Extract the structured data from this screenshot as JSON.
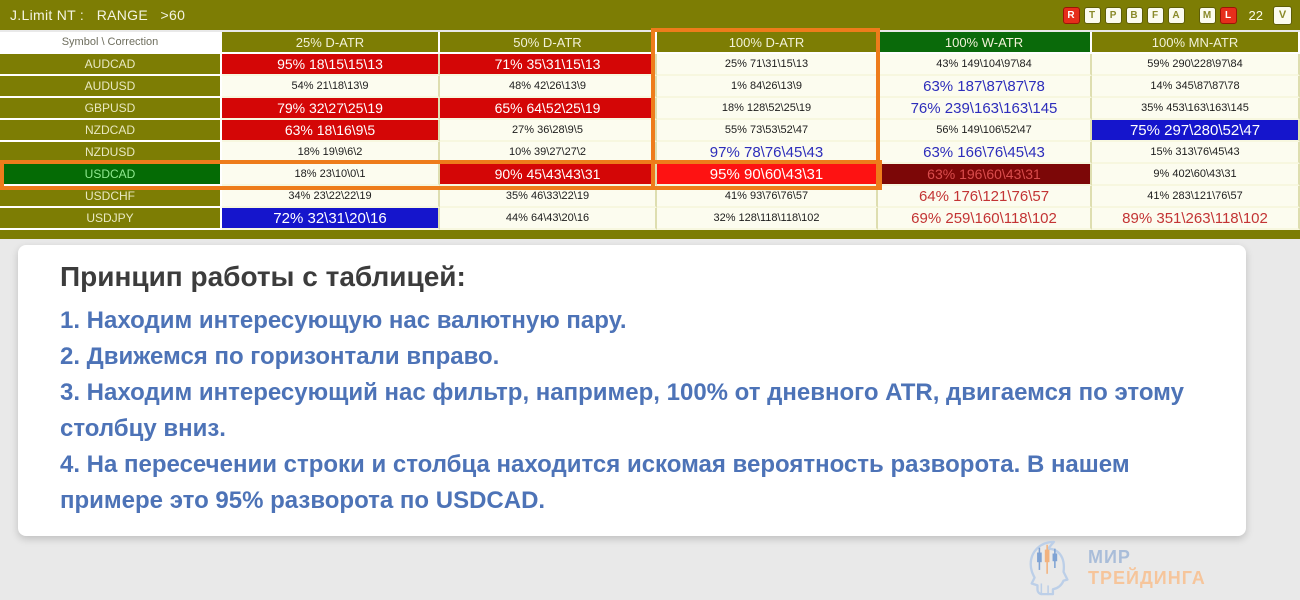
{
  "topbar": {
    "title": "J.Limit NT :   RANGE   >60",
    "buttons": [
      {
        "label": "R",
        "variant": "red"
      },
      {
        "label": "T",
        "variant": "light"
      },
      {
        "label": "P",
        "variant": "light"
      },
      {
        "label": "B",
        "variant": "light"
      },
      {
        "label": "F",
        "variant": "light"
      },
      {
        "label": "A",
        "variant": "light"
      },
      {
        "label": "M",
        "variant": "light",
        "gap": true
      },
      {
        "label": "L",
        "variant": "red"
      }
    ],
    "count": "22",
    "v_button": "V"
  },
  "table": {
    "corner_label": "Symbol \\ Correction",
    "columns": [
      {
        "label": "25% D-ATR",
        "variant": "olive"
      },
      {
        "label": "50% D-ATR",
        "variant": "olive"
      },
      {
        "label": "100% D-ATR",
        "variant": "olive"
      },
      {
        "label": "100% W-ATR",
        "variant": "green"
      },
      {
        "label": "100% MN-ATR",
        "variant": "olive"
      }
    ],
    "rows": [
      {
        "symbol": "AUDCAD",
        "highlight": false,
        "cells": [
          {
            "text": "95% 18\\15\\15\\13",
            "style": "red"
          },
          {
            "text": "71% 35\\31\\15\\13",
            "style": "red"
          },
          {
            "text": "25% 71\\31\\15\\13",
            "style": "plain"
          },
          {
            "text": "43% 149\\104\\97\\84",
            "style": "plain"
          },
          {
            "text": "59% 290\\228\\97\\84",
            "style": "plain"
          }
        ]
      },
      {
        "symbol": "AUDUSD",
        "highlight": false,
        "cells": [
          {
            "text": "54% 21\\18\\13\\9",
            "style": "plain"
          },
          {
            "text": "48% 42\\26\\13\\9",
            "style": "plain"
          },
          {
            "text": "1% 84\\26\\13\\9",
            "style": "plain"
          },
          {
            "text": "63% 187\\87\\87\\78",
            "style": "blue-text"
          },
          {
            "text": "14% 345\\87\\87\\78",
            "style": "plain"
          }
        ]
      },
      {
        "symbol": "GBPUSD",
        "highlight": false,
        "cells": [
          {
            "text": "79% 32\\27\\25\\19",
            "style": "red"
          },
          {
            "text": "65% 64\\52\\25\\19",
            "style": "red"
          },
          {
            "text": "18% 128\\52\\25\\19",
            "style": "plain"
          },
          {
            "text": "76% 239\\163\\163\\145",
            "style": "blue-text"
          },
          {
            "text": "35% 453\\163\\163\\145",
            "style": "plain"
          }
        ]
      },
      {
        "symbol": "NZDCAD",
        "highlight": false,
        "cells": [
          {
            "text": "63% 18\\16\\9\\5",
            "style": "red"
          },
          {
            "text": "27% 36\\28\\9\\5",
            "style": "plain"
          },
          {
            "text": "55% 73\\53\\52\\47",
            "style": "plain"
          },
          {
            "text": "56% 149\\106\\52\\47",
            "style": "plain"
          },
          {
            "text": "75% 297\\280\\52\\47",
            "style": "blue"
          }
        ]
      },
      {
        "symbol": "NZDUSD",
        "highlight": false,
        "cells": [
          {
            "text": "18% 19\\9\\6\\2",
            "style": "plain"
          },
          {
            "text": "10% 39\\27\\27\\2",
            "style": "plain"
          },
          {
            "text": "97% 78\\76\\45\\43",
            "style": "blue-text"
          },
          {
            "text": "63% 166\\76\\45\\43",
            "style": "blue-text"
          },
          {
            "text": "15% 313\\76\\45\\43",
            "style": "plain"
          }
        ]
      },
      {
        "symbol": "USDCAD",
        "highlight": true,
        "cells": [
          {
            "text": "18% 23\\10\\0\\1",
            "style": "plain"
          },
          {
            "text": "90% 45\\43\\43\\31",
            "style": "red"
          },
          {
            "text": "95% 90\\60\\43\\31",
            "style": "bright-red"
          },
          {
            "text": "63% 196\\60\\43\\31",
            "style": "maroon"
          },
          {
            "text": "9% 402\\60\\43\\31",
            "style": "plain"
          }
        ]
      },
      {
        "symbol": "USDCHF",
        "highlight": false,
        "cells": [
          {
            "text": "34% 23\\22\\22\\19",
            "style": "plain"
          },
          {
            "text": "35% 46\\33\\22\\19",
            "style": "plain"
          },
          {
            "text": "41% 93\\76\\76\\57",
            "style": "plain"
          },
          {
            "text": "64% 176\\121\\76\\57",
            "style": "red-text"
          },
          {
            "text": "41% 283\\121\\76\\57",
            "style": "plain"
          }
        ]
      },
      {
        "symbol": "USDJPY",
        "highlight": false,
        "cells": [
          {
            "text": "72% 32\\31\\20\\16",
            "style": "blue"
          },
          {
            "text": "44% 64\\43\\20\\16",
            "style": "plain"
          },
          {
            "text": "32% 128\\118\\118\\102",
            "style": "plain"
          },
          {
            "text": "69% 259\\160\\118\\102",
            "style": "red-text"
          },
          {
            "text": "89% 351\\263\\118\\102",
            "style": "red-text"
          }
        ]
      }
    ]
  },
  "note": {
    "title": "Принцип работы с таблицей:",
    "items": [
      "1. Находим интересующую нас валютную пару.",
      "2. Движемся по горизонтали вправо.",
      "3. Находим интересующий нас фильтр, например, 100% от дневного ATR, двигаемся по этому столбцу вниз.",
      "4. На пересечении строки и столбца находится искомая вероятность разворота. В нашем примере это 95% разворота по USDCAD."
    ]
  },
  "logo": {
    "line1": "МИР",
    "line2": "ТРЕЙДИНГА"
  },
  "colors": {
    "olive": "#7d7d04",
    "header_green": "#0a6a0a",
    "row_green": "#056b05",
    "red_cell": "#d40606",
    "bright_red_cell": "#fe1212",
    "maroon_cell": "#7c0707",
    "blue_cell": "#1515cc",
    "blue_text": "#2d2dbb",
    "red_text": "#c33434",
    "highlight_orange": "#ee7c1b"
  }
}
